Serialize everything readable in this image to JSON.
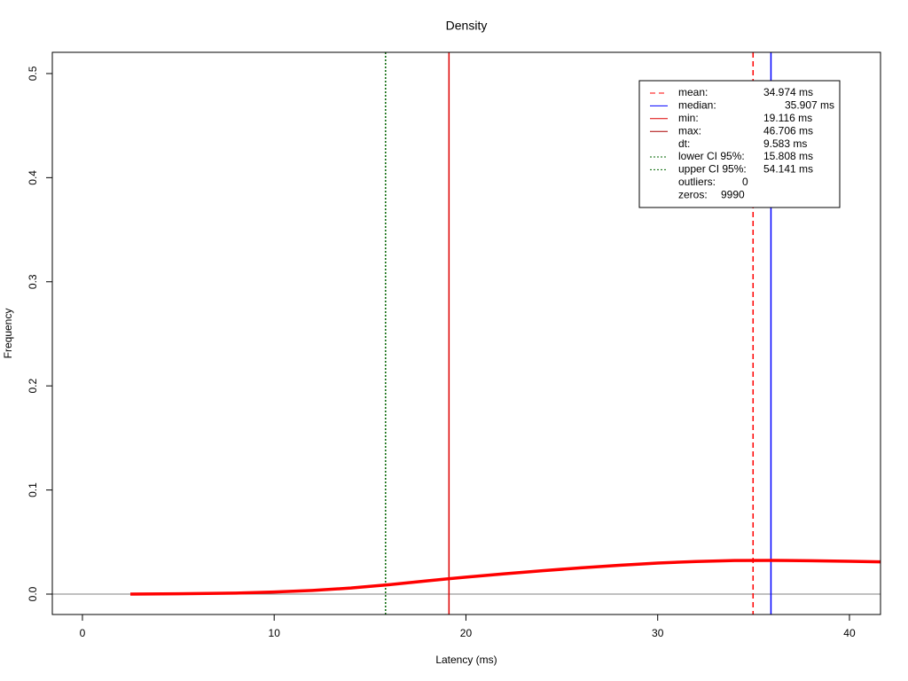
{
  "chart_data": {
    "type": "line",
    "title": "Density",
    "xlabel": "Latency (ms)",
    "ylabel": "Frequency",
    "xlim": [
      -1.57,
      41.62
    ],
    "ylim": [
      -0.0196,
      0.5204
    ],
    "xticks": [
      0,
      10,
      20,
      30,
      40
    ],
    "yticks": [
      {
        "value": 0,
        "label": "0.0"
      },
      {
        "value": 0.1,
        "label": "0.1"
      },
      {
        "value": 0.2,
        "label": "0.2"
      },
      {
        "value": 0.3,
        "label": "0.3"
      },
      {
        "value": 0.4,
        "label": "0.4"
      },
      {
        "value": 0.5,
        "label": "0.5"
      }
    ],
    "x": [
      2.5,
      5,
      8,
      10,
      12,
      14,
      16,
      18,
      20,
      22,
      24,
      26,
      28,
      30,
      32,
      34,
      36,
      38,
      40,
      41.6
    ],
    "series": [
      {
        "color": "#ff0000",
        "values": [
          0,
          0.0003,
          0.001,
          0.002,
          0.0035,
          0.0058,
          0.009,
          0.0128,
          0.0163,
          0.0195,
          0.0225,
          0.0252,
          0.0277,
          0.0298,
          0.0313,
          0.0322,
          0.0324,
          0.032,
          0.0315,
          0.031
        ]
      }
    ],
    "legend": [
      {
        "name": "mean:",
        "value": 34.974,
        "label": "34.974 ms",
        "color": "#ff0000",
        "dash": "dashed"
      },
      {
        "name": "median:",
        "value": 35.907,
        "label": "35.907 ms",
        "color": "#0000ff",
        "dash": "solid"
      },
      {
        "name": "min:",
        "value": 19.116,
        "label": "19.116 ms",
        "color": "#dd0000",
        "dash": "solid"
      },
      {
        "name": "max:",
        "value": 46.706,
        "label": "46.706 ms",
        "color": "#aa0000",
        "dash": "solid"
      },
      {
        "name": "dt:",
        "value": 9.583,
        "label": "9.583 ms"
      },
      {
        "name": "lower CI 95%:",
        "value": 15.808,
        "label": "15.808 ms",
        "color": "#006400",
        "dash": "dotted"
      },
      {
        "name": "upper CI 95%:",
        "value": 54.141,
        "label": "54.141 ms",
        "color": "#006400",
        "dash": "dotted"
      },
      {
        "name": "outliers:",
        "value": 0,
        "label": "0"
      },
      {
        "name": "zeros:",
        "value": 9990,
        "label": "9990"
      }
    ]
  }
}
